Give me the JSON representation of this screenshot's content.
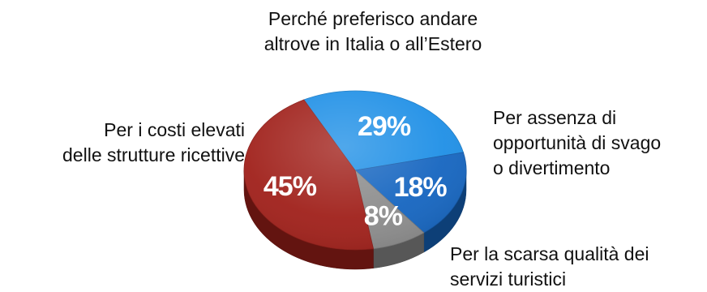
{
  "chart_data": {
    "type": "pie",
    "title": [
      "Perché preferisco andare",
      "altrove in Italia o all’Estero"
    ],
    "slices": [
      {
        "label": [
          "Per i costi elevati",
          "delle strutture ricettive"
        ],
        "value": 45,
        "value_label": "45%",
        "color": "#a0201a"
      },
      {
        "label": [],
        "value": 29,
        "value_label": "29%",
        "color": "#1e8fe6"
      },
      {
        "label": [
          "Per assenza di",
          "opportunità di svago",
          "o divertimento"
        ],
        "value": 18,
        "value_label": "18%",
        "color": "#1565c0"
      },
      {
        "label": [
          "Per la scarsa qualità dei",
          "servizi turistici"
        ],
        "value": 8,
        "value_label": "8%",
        "color": "#8c8c8c"
      }
    ],
    "style": "3d-tilted",
    "legend": "none"
  }
}
